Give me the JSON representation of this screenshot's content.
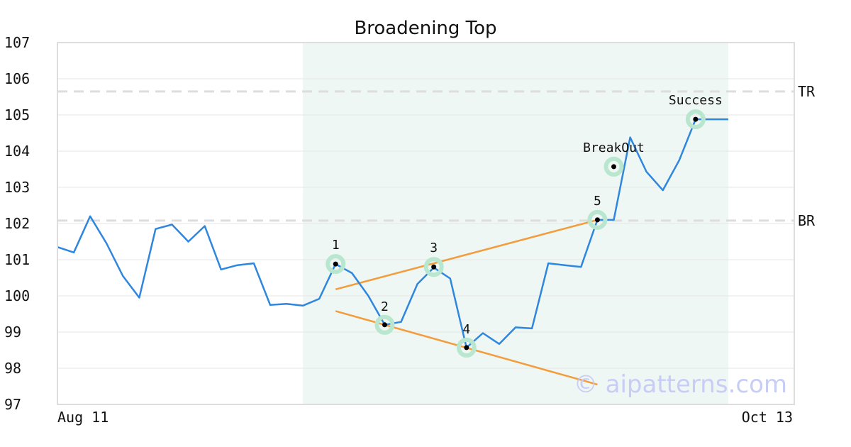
{
  "chart_data": {
    "type": "line",
    "title": "Broadening Top",
    "xlabel": "",
    "ylabel": "",
    "ylim": [
      97,
      107
    ],
    "yticks": [
      97,
      98,
      99,
      100,
      101,
      102,
      103,
      104,
      105,
      106,
      107
    ],
    "x_tick_labels": [
      "Aug 11",
      "Oct 13"
    ],
    "grid": "horizontal",
    "series": [
      {
        "values": [
          101.35,
          101.2,
          102.2,
          101.45,
          100.55,
          99.95,
          101.85,
          101.97,
          101.5,
          101.93,
          100.73,
          100.85,
          100.9,
          99.75,
          99.78,
          99.73,
          99.92,
          100.88,
          100.63,
          100.0,
          99.2,
          99.28,
          100.33,
          100.78,
          100.48,
          98.57,
          98.97,
          98.67,
          99.13,
          99.1,
          100.9,
          100.85,
          100.8,
          102.1,
          102.1,
          104.38,
          103.43,
          102.92,
          103.75,
          104.88,
          104.88,
          104.88
        ],
        "color": "#2e86de"
      }
    ],
    "highlight_region": {
      "start_index": 15,
      "end_index": 41,
      "color": "#eef7f3"
    },
    "levels": [
      {
        "label": "TR",
        "value": 105.65
      },
      {
        "label": "BR",
        "value": 102.08
      }
    ],
    "trendlines": [
      {
        "from": {
          "index": 17,
          "value": 100.18
        },
        "to": {
          "index": 33,
          "value": 102.1
        },
        "color": "#f39c3c"
      },
      {
        "from": {
          "index": 17,
          "value": 99.58
        },
        "to": {
          "index": 33,
          "value": 97.55
        },
        "color": "#f39c3c"
      }
    ],
    "annotations": [
      {
        "label": "1",
        "index": 17,
        "value": 100.88
      },
      {
        "label": "2",
        "index": 20,
        "value": 99.2
      },
      {
        "label": "3",
        "index": 23,
        "value": 100.8
      },
      {
        "label": "4",
        "index": 25,
        "value": 98.57
      },
      {
        "label": "5",
        "index": 33,
        "value": 102.1
      },
      {
        "label": "BreakOut",
        "index": 34,
        "value": 103.57
      },
      {
        "label": "Success",
        "index": 39,
        "value": 104.88
      }
    ],
    "watermark": "© aipatterns.com"
  }
}
